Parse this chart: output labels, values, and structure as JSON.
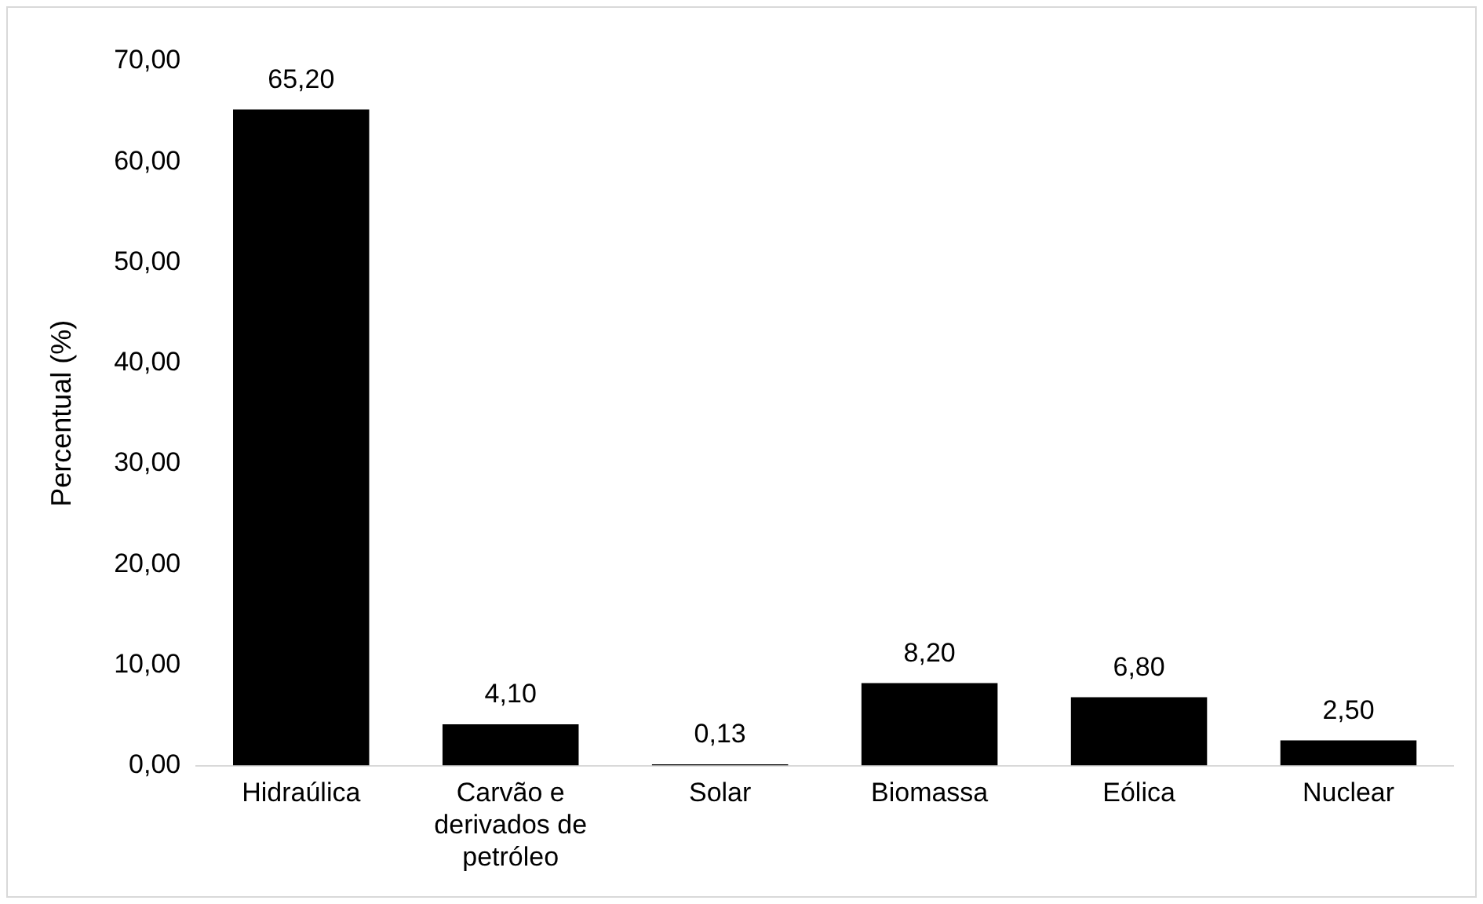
{
  "chart_data": {
    "type": "bar",
    "ylabel": "Percentual (%)",
    "categories": [
      "Hidraúlica",
      "Carvão e derivados de petróleo",
      "Solar",
      "Biomassa",
      "Eólica",
      "Nuclear"
    ],
    "values": [
      65.2,
      4.1,
      0.13,
      8.2,
      6.8,
      2.5
    ],
    "value_labels": [
      "65,20",
      "4,10",
      "0,13",
      "8,20",
      "6,80",
      "2,50"
    ],
    "color": "#000000",
    "ylim": [
      0,
      70
    ],
    "yticks": [
      {
        "value": 0,
        "label": "0,00"
      },
      {
        "value": 10,
        "label": "10,00"
      },
      {
        "value": 20,
        "label": "20,00"
      },
      {
        "value": 30,
        "label": "30,00"
      },
      {
        "value": 40,
        "label": "40,00"
      },
      {
        "value": 50,
        "label": "50,00"
      },
      {
        "value": 60,
        "label": "60,00"
      },
      {
        "value": 70,
        "label": "70,00"
      }
    ],
    "grid": false,
    "legend": false
  }
}
